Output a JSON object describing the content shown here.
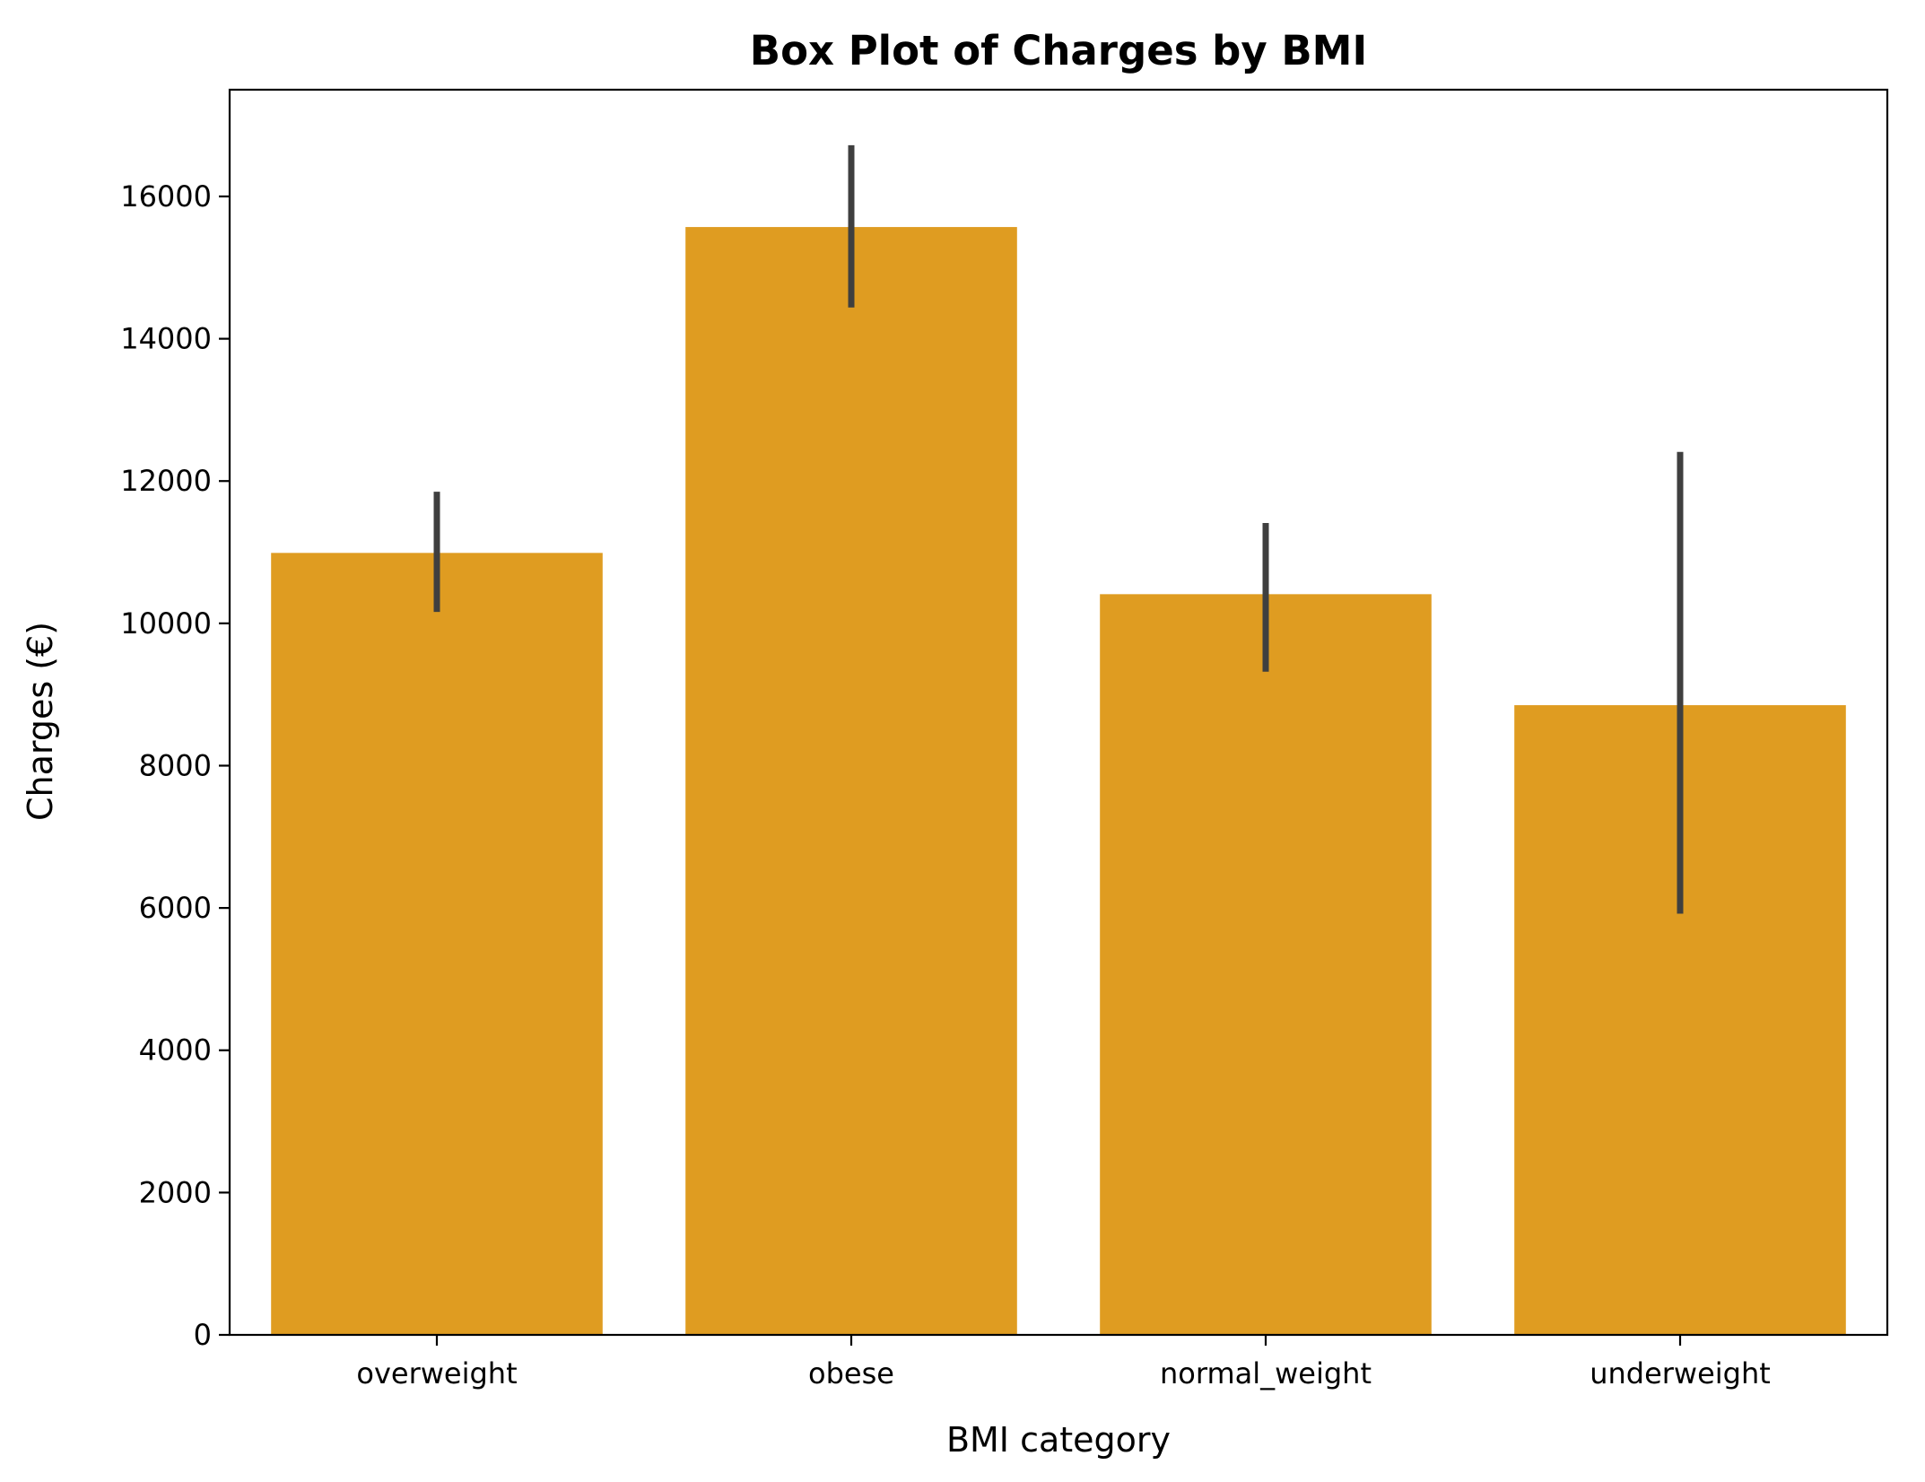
{
  "chart_data": {
    "type": "bar",
    "title": "Box Plot of Charges by BMI",
    "xlabel": "BMI category",
    "ylabel": "Charges (€)",
    "categories": [
      "overweight",
      "obese",
      "normal_weight",
      "underweight"
    ],
    "values": [
      10990,
      15570,
      10410,
      8850
    ],
    "error_bars": [
      {
        "low": 10160,
        "high": 11850
      },
      {
        "low": 14440,
        "high": 16720
      },
      {
        "low": 9320,
        "high": 11410
      },
      {
        "low": 5920,
        "high": 12410
      }
    ],
    "ylim": [
      0,
      17500
    ],
    "yticks": [
      0,
      2000,
      4000,
      6000,
      8000,
      10000,
      12000,
      14000,
      16000
    ],
    "ytick_labels": [
      "0",
      "2000",
      "4000",
      "6000",
      "8000",
      "10000",
      "12000",
      "14000",
      "16000"
    ],
    "grid": false,
    "legend": "none",
    "colors": {
      "bar": "#DF9C21",
      "error_bar": "#3f3f3f",
      "axis": "#000000"
    }
  }
}
